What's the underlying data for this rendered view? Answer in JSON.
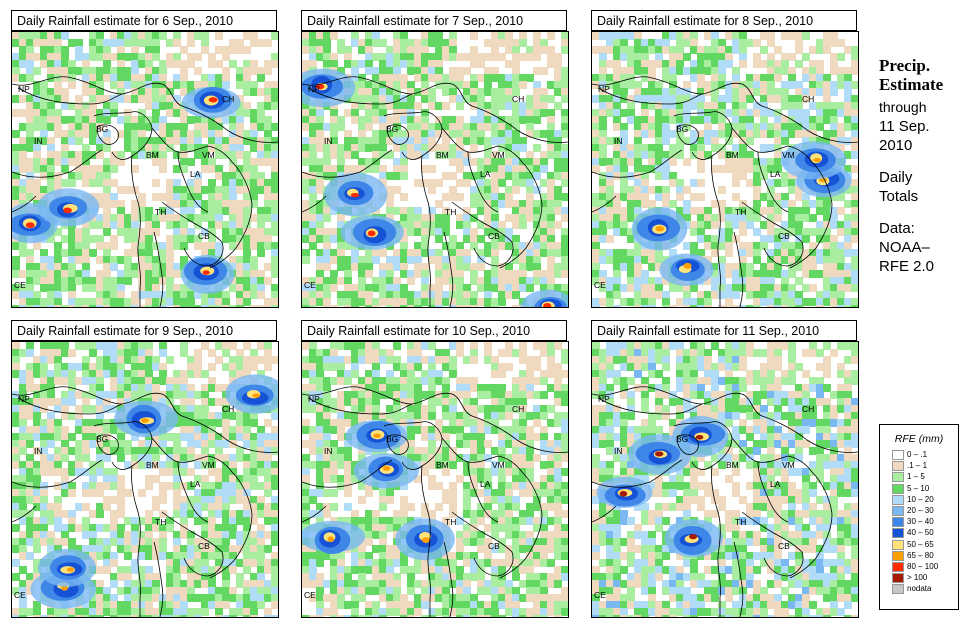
{
  "panels": [
    {
      "title": "Daily Rainfall estimate for  6 Sep., 2010",
      "seed": 11
    },
    {
      "title": "Daily Rainfall estimate for  7 Sep., 2010",
      "seed": 27
    },
    {
      "title": "Daily Rainfall estimate for  8 Sep., 2010",
      "seed": 43
    },
    {
      "title": "Daily Rainfall estimate for  9 Sep., 2010",
      "seed": 59
    },
    {
      "title": "Daily Rainfall estimate for  10 Sep., 2010",
      "seed": 71
    },
    {
      "title": "Daily Rainfall estimate for  11 Sep., 2010",
      "seed": 97
    }
  ],
  "countries": [
    {
      "code": "NP"
    },
    {
      "code": "CH"
    },
    {
      "code": "IN"
    },
    {
      "code": "BG"
    },
    {
      "code": "BM"
    },
    {
      "code": "VM"
    },
    {
      "code": "LA"
    },
    {
      "code": "TH"
    },
    {
      "code": "CB"
    },
    {
      "code": "CE"
    }
  ],
  "side": {
    "title_line1": "Precip.",
    "title_line2": "Estimate",
    "through": "through",
    "date_line1": "11 Sep.",
    "date_line2": "2010",
    "daily_line1": "Daily",
    "daily_line2": "Totals",
    "data_line1": "Data:",
    "data_line2": "NOAA–",
    "data_line3": "RFE 2.0"
  },
  "legend": {
    "title": "RFE (mm)",
    "items": [
      {
        "label": "0 – .1",
        "color": "#ffffff"
      },
      {
        "label": ".1 – 1",
        "color": "#efd9bf"
      },
      {
        "label": "1 – 5",
        "color": "#a8eda0"
      },
      {
        "label": "5 – 10",
        "color": "#62d862"
      },
      {
        "label": "10 – 20",
        "color": "#b0dcf7"
      },
      {
        "label": "20 – 30",
        "color": "#7ab8f2"
      },
      {
        "label": "30 – 40",
        "color": "#3e87e8"
      },
      {
        "label": "40 – 50",
        "color": "#1552d6"
      },
      {
        "label": "50 – 65",
        "color": "#ffe27a"
      },
      {
        "label": "65 – 80",
        "color": "#ffa000"
      },
      {
        "label": "80 – 100",
        "color": "#ff2a00"
      },
      {
        "label": "> 100",
        "color": "#a61c00"
      },
      {
        "label": "nodata",
        "color": "#c8c8c8"
      }
    ]
  },
  "palette": {
    "land_dry": "#ffffff",
    "trace": "#efd9bf",
    "light": "#a8eda0",
    "moderate": "#62d862",
    "heavy": "#b0dcf7",
    "heavier": "#7ab8f2",
    "intense": "#3e87e8",
    "very_intense": "#1552d6",
    "extreme": "#ff2a00",
    "extreme2": "#a61c00",
    "orange": "#ffa000",
    "yellow": "#ffe27a"
  }
}
